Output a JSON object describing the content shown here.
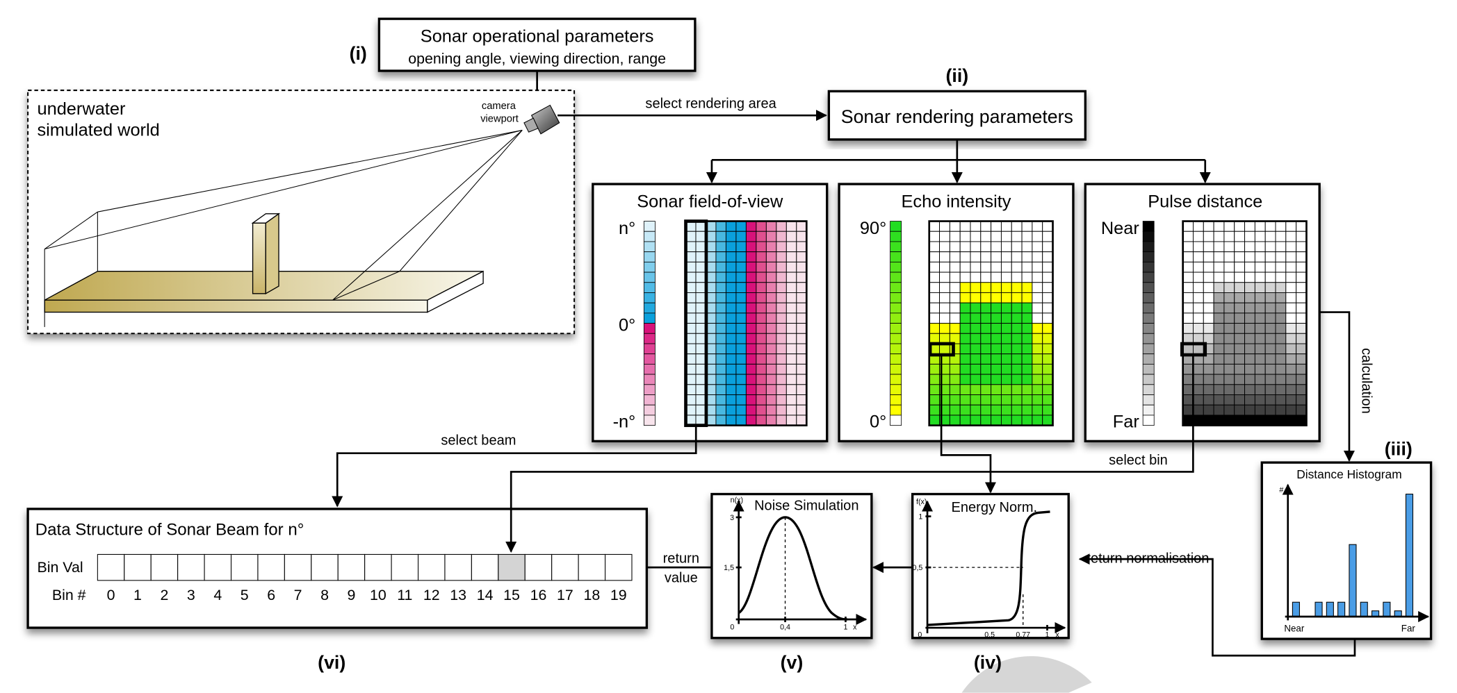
{
  "labels": {
    "step_i": "(i)",
    "step_ii": "(ii)",
    "step_iii": "(iii)",
    "step_iv": "(iv)",
    "step_v": "(v)",
    "step_vi": "(vi)"
  },
  "operational_box": {
    "title": "Sonar operational parameters",
    "subtitle": "opening angle, viewing direction, range"
  },
  "world": {
    "line1": "underwater",
    "line2": "simulated world",
    "camera_line1": "camera",
    "camera_line2": "viewport"
  },
  "rendering_box": {
    "title": "Sonar rendering parameters"
  },
  "arrows": {
    "select_rendering_area": "select rendering area",
    "select_beam": "select beam",
    "select_bin": "select bin",
    "calculation": "calculation",
    "return_normalisation": "return normalisation",
    "return": "return",
    "value": "value"
  },
  "panels": {
    "fov": {
      "title": "Sonar field-of-view",
      "top": "n°",
      "mid": "0°",
      "bottom": "-n°"
    },
    "echo": {
      "title": "Echo intensity",
      "top": "90°",
      "bottom": "0°"
    },
    "pulse": {
      "title": "Pulse distance",
      "top": "Near",
      "bottom": "Far"
    }
  },
  "grid": {
    "rows": 20,
    "cols": 12,
    "highlight_beam_cols": [
      0,
      1
    ],
    "highlight_bin_row": 11
  },
  "colors": {
    "fov_blue_light": "#dff2fa",
    "fov_blue_dark": "#0aa0dc",
    "fov_pink_dark": "#d8127a",
    "fov_pink_light": "#f8e4ec",
    "fov_columns": [
      "#e0f3fa",
      "#e0f3fa",
      "#a8dcef",
      "#48b8e0",
      "#0aa0dc",
      "#0aa0dc",
      "#d8127a",
      "#e0508f",
      "#e880ae",
      "#f0b8d0",
      "#f8e4ec",
      "#f8e4ec"
    ],
    "echo_green": "#22dd22",
    "echo_yellow": "#ffff00",
    "histogram_bar": "#4a9de6",
    "bin_highlight": "#d4d4d4",
    "floor": "#c8b460"
  },
  "histogram": {
    "title": "Distance Histogram",
    "ylabel": "#",
    "x_start": "Near",
    "x_end": "Far",
    "values": [
      1,
      0,
      1,
      1,
      1,
      5,
      1,
      0.4,
      1,
      0.4,
      8.5
    ]
  },
  "noise": {
    "title": "Noise Simulation",
    "ylabel": "n(x)",
    "xlabel": "x",
    "y_ticks": [
      "3",
      "1,5"
    ],
    "x_ticks": [
      "0",
      "0,4",
      "1"
    ],
    "peak_x": 0.4,
    "peak_y": 3
  },
  "energy": {
    "title": "Energy Norm.",
    "ylabel": "f(x)",
    "xlabel": "x",
    "y_ticks": [
      "1",
      "0,5"
    ],
    "x_ticks": [
      "0",
      "0,5",
      "0,77",
      "1"
    ],
    "threshold_x": 0.77
  },
  "data_structure": {
    "title": "Data Structure of Sonar Beam for n°",
    "bin_val_label": "Bin Val",
    "bin_num_label": "Bin #",
    "bins": [
      "0",
      "1",
      "2",
      "3",
      "4",
      "5",
      "6",
      "7",
      "8",
      "9",
      "10",
      "11",
      "12",
      "13",
      "14",
      "15",
      "16",
      "17",
      "18",
      "19"
    ],
    "selected_bin": 15
  }
}
